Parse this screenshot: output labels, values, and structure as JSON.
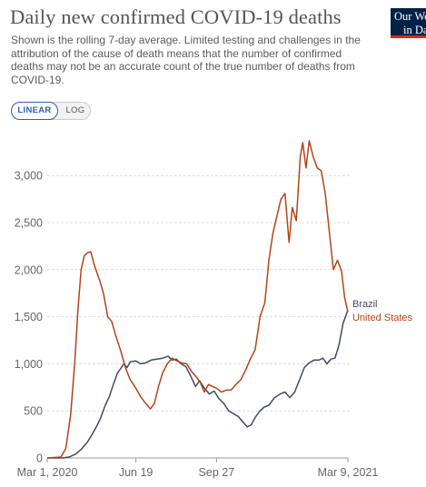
{
  "header": {
    "title": "Daily new confirmed COVID-19 deaths",
    "subtitle": "Shown is the rolling 7-day average. Limited testing and challenges in the attribution of the cause of death means that the number of confirmed deaths may not be an accurate count of the true number of deaths from COVID-19.",
    "logo_line1": "Our World",
    "logo_line2": "in Data",
    "logo_colors": {
      "background": "#002147",
      "accent": "#d42b21"
    }
  },
  "scale_toggle": {
    "linear_label": "LINEAR",
    "log_label": "LOG",
    "selected": "LINEAR"
  },
  "chart_data": {
    "type": "line",
    "x_ticks": [
      "Mar 1, 2020",
      "Jun 19",
      "Sep 27",
      "Mar 9, 2021"
    ],
    "y_ticks": [
      "0",
      "500",
      "1,000",
      "1,500",
      "2,000",
      "2,500",
      "3,000"
    ],
    "ylim": [
      0,
      3400
    ],
    "xlim": [
      "2020-03-01",
      "2021-03-09"
    ],
    "grid": "horizontal dashed",
    "series": [
      {
        "name": "Brazil",
        "color": "#3f4b63",
        "points": [
          [
            "2020-03-01",
            0
          ],
          [
            "2020-03-20",
            0
          ],
          [
            "2020-03-28",
            10
          ],
          [
            "2020-04-05",
            40
          ],
          [
            "2020-04-12",
            90
          ],
          [
            "2020-04-20",
            170
          ],
          [
            "2020-04-25",
            240
          ],
          [
            "2020-05-01",
            330
          ],
          [
            "2020-05-06",
            420
          ],
          [
            "2020-05-12",
            560
          ],
          [
            "2020-05-17",
            650
          ],
          [
            "2020-05-22",
            780
          ],
          [
            "2020-05-27",
            900
          ],
          [
            "2020-06-01",
            960
          ],
          [
            "2020-06-04",
            1000
          ],
          [
            "2020-06-08",
            960
          ],
          [
            "2020-06-12",
            1020
          ],
          [
            "2020-06-19",
            1030
          ],
          [
            "2020-06-25",
            1000
          ],
          [
            "2020-07-01",
            1010
          ],
          [
            "2020-07-08",
            1040
          ],
          [
            "2020-07-15",
            1050
          ],
          [
            "2020-07-22",
            1060
          ],
          [
            "2020-07-29",
            1080
          ],
          [
            "2020-08-03",
            1040
          ],
          [
            "2020-08-08",
            1050
          ],
          [
            "2020-08-14",
            1000
          ],
          [
            "2020-08-20",
            970
          ],
          [
            "2020-08-26",
            870
          ],
          [
            "2020-09-01",
            760
          ],
          [
            "2020-09-06",
            820
          ],
          [
            "2020-09-12",
            740
          ],
          [
            "2020-09-18",
            680
          ],
          [
            "2020-09-24",
            710
          ],
          [
            "2020-09-30",
            630
          ],
          [
            "2020-10-06",
            580
          ],
          [
            "2020-10-12",
            500
          ],
          [
            "2020-10-18",
            470
          ],
          [
            "2020-10-24",
            440
          ],
          [
            "2020-10-30",
            380
          ],
          [
            "2020-11-04",
            330
          ],
          [
            "2020-11-09",
            350
          ],
          [
            "2020-11-14",
            430
          ],
          [
            "2020-11-19",
            490
          ],
          [
            "2020-11-25",
            540
          ],
          [
            "2020-12-01",
            560
          ],
          [
            "2020-12-08",
            640
          ],
          [
            "2020-12-15",
            680
          ],
          [
            "2020-12-21",
            700
          ],
          [
            "2020-12-27",
            640
          ],
          [
            "2021-01-02",
            700
          ],
          [
            "2021-01-08",
            830
          ],
          [
            "2021-01-14",
            960
          ],
          [
            "2021-01-20",
            1010
          ],
          [
            "2021-01-26",
            1040
          ],
          [
            "2021-02-01",
            1040
          ],
          [
            "2021-02-06",
            1060
          ],
          [
            "2021-02-11",
            1000
          ],
          [
            "2021-02-16",
            1050
          ],
          [
            "2021-02-21",
            1060
          ],
          [
            "2021-02-26",
            1200
          ],
          [
            "2021-03-03",
            1430
          ],
          [
            "2021-03-09",
            1570
          ]
        ]
      },
      {
        "name": "United States",
        "color": "#b34419",
        "points": [
          [
            "2020-03-01",
            0
          ],
          [
            "2020-03-18",
            10
          ],
          [
            "2020-03-24",
            100
          ],
          [
            "2020-03-30",
            450
          ],
          [
            "2020-04-04",
            1000
          ],
          [
            "2020-04-08",
            1560
          ],
          [
            "2020-04-12",
            2000
          ],
          [
            "2020-04-16",
            2150
          ],
          [
            "2020-04-20",
            2180
          ],
          [
            "2020-04-24",
            2190
          ],
          [
            "2020-04-28",
            2060
          ],
          [
            "2020-05-02",
            1960
          ],
          [
            "2020-05-06",
            1860
          ],
          [
            "2020-05-10",
            1740
          ],
          [
            "2020-05-15",
            1500
          ],
          [
            "2020-05-20",
            1450
          ],
          [
            "2020-05-25",
            1300
          ],
          [
            "2020-05-31",
            1140
          ],
          [
            "2020-06-06",
            960
          ],
          [
            "2020-06-12",
            830
          ],
          [
            "2020-06-19",
            740
          ],
          [
            "2020-06-25",
            650
          ],
          [
            "2020-07-01",
            580
          ],
          [
            "2020-07-07",
            520
          ],
          [
            "2020-07-12",
            580
          ],
          [
            "2020-07-17",
            760
          ],
          [
            "2020-07-22",
            900
          ],
          [
            "2020-07-28",
            1000
          ],
          [
            "2020-08-03",
            1060
          ],
          [
            "2020-08-09",
            1030
          ],
          [
            "2020-08-15",
            1010
          ],
          [
            "2020-08-21",
            1000
          ],
          [
            "2020-08-27",
            920
          ],
          [
            "2020-09-02",
            860
          ],
          [
            "2020-09-07",
            800
          ],
          [
            "2020-09-12",
            700
          ],
          [
            "2020-09-17",
            780
          ],
          [
            "2020-09-22",
            760
          ],
          [
            "2020-09-27",
            740
          ],
          [
            "2020-10-03",
            700
          ],
          [
            "2020-10-09",
            720
          ],
          [
            "2020-10-15",
            720
          ],
          [
            "2020-10-21",
            780
          ],
          [
            "2020-10-27",
            830
          ],
          [
            "2020-11-02",
            930
          ],
          [
            "2020-11-08",
            1050
          ],
          [
            "2020-11-14",
            1150
          ],
          [
            "2020-11-20",
            1500
          ],
          [
            "2020-11-26",
            1650
          ],
          [
            "2020-12-01",
            2100
          ],
          [
            "2020-12-06",
            2390
          ],
          [
            "2020-12-11",
            2570
          ],
          [
            "2020-12-16",
            2750
          ],
          [
            "2020-12-21",
            2810
          ],
          [
            "2020-12-26",
            2290
          ],
          [
            "2020-12-30",
            2660
          ],
          [
            "2021-01-04",
            2520
          ],
          [
            "2021-01-09",
            3200
          ],
          [
            "2021-01-12",
            3350
          ],
          [
            "2021-01-16",
            3080
          ],
          [
            "2021-01-20",
            3370
          ],
          [
            "2021-01-25",
            3200
          ],
          [
            "2021-01-30",
            3080
          ],
          [
            "2021-02-04",
            3050
          ],
          [
            "2021-02-09",
            2800
          ],
          [
            "2021-02-14",
            2400
          ],
          [
            "2021-02-19",
            2000
          ],
          [
            "2021-02-24",
            2100
          ],
          [
            "2021-03-01",
            1990
          ],
          [
            "2021-03-05",
            1700
          ],
          [
            "2021-03-09",
            1550
          ]
        ]
      }
    ]
  }
}
